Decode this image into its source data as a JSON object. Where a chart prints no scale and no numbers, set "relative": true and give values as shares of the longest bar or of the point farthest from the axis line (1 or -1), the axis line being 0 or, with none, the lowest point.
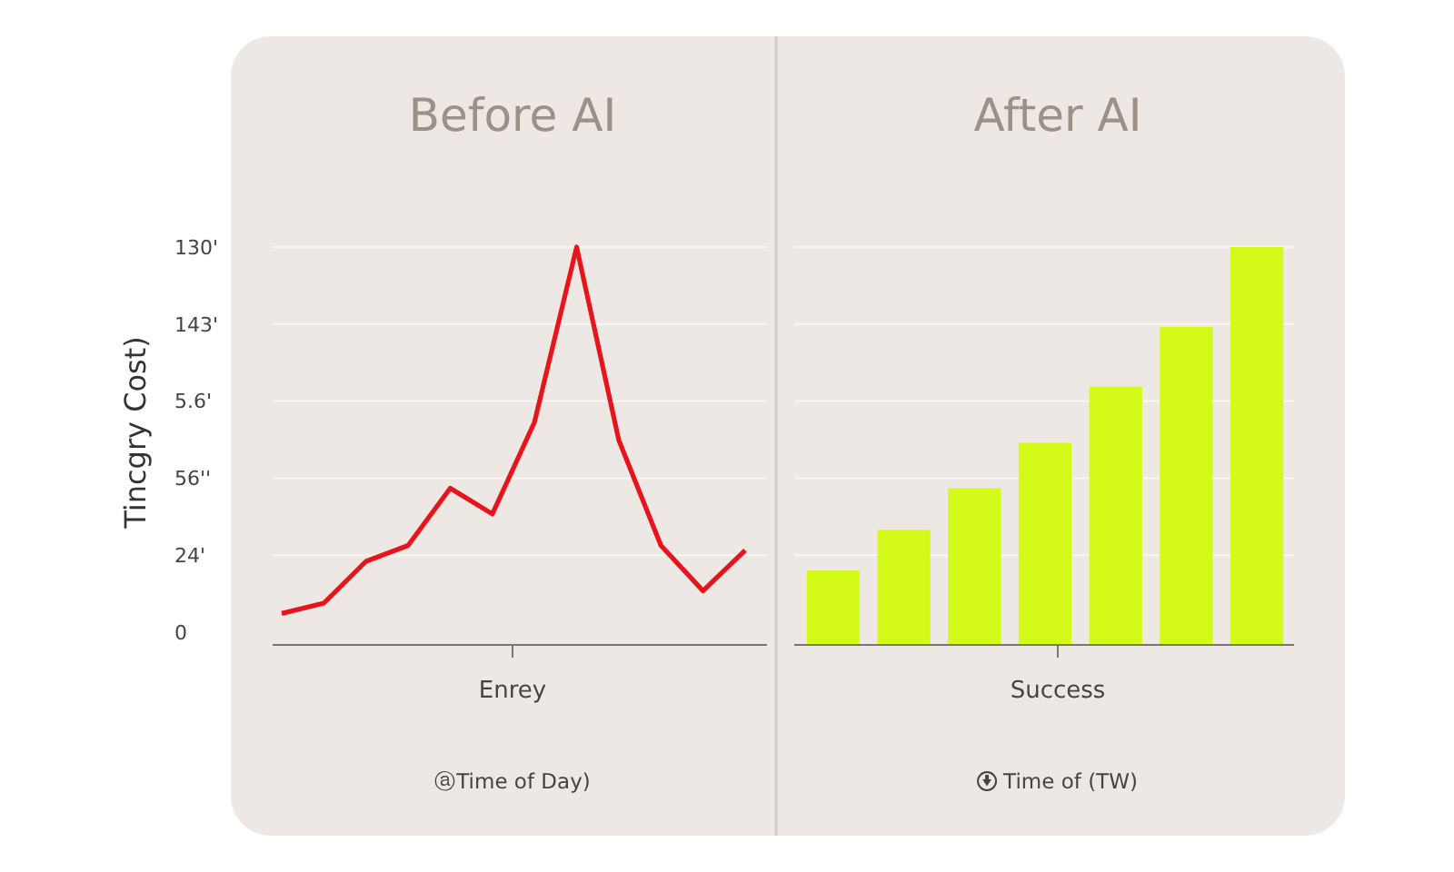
{
  "chart_data": [
    {
      "type": "line",
      "title": "Before AI",
      "ylabel": "Tincgry Cost)",
      "xlabel": "Enrey",
      "relative": true,
      "annotations": [
        "130'",
        "143'",
        "5.6'",
        "56''",
        "24'",
        "0",
        "ⓐTime of Day)"
      ],
      "categories": [
        null,
        null,
        null,
        null,
        null,
        null,
        null,
        null,
        null,
        null,
        null,
        null
      ],
      "series": [
        {
          "color": "#e8141c",
          "values": [
            0.079,
            0.105,
            0.21,
            0.25,
            0.394,
            0.329,
            0.56,
            1,
            0.515,
            0.25,
            0.136,
            0.238
          ]
        }
      ],
      "grid": "y",
      "marker": "none",
      "line_style": "solid"
    },
    {
      "type": "bar",
      "title": "After AI",
      "xlabel": "Success",
      "relative": true,
      "annotations": [
        "Time of (TW)"
      ],
      "categories": [
        null,
        null,
        null,
        null,
        null,
        null,
        null
      ],
      "series": [
        {
          "color": "#d4fa1a",
          "values": [
            0.187,
            0.289,
            0.394,
            0.508,
            0.649,
            0.799,
            1
          ]
        }
      ],
      "grid": "y"
    }
  ]
}
